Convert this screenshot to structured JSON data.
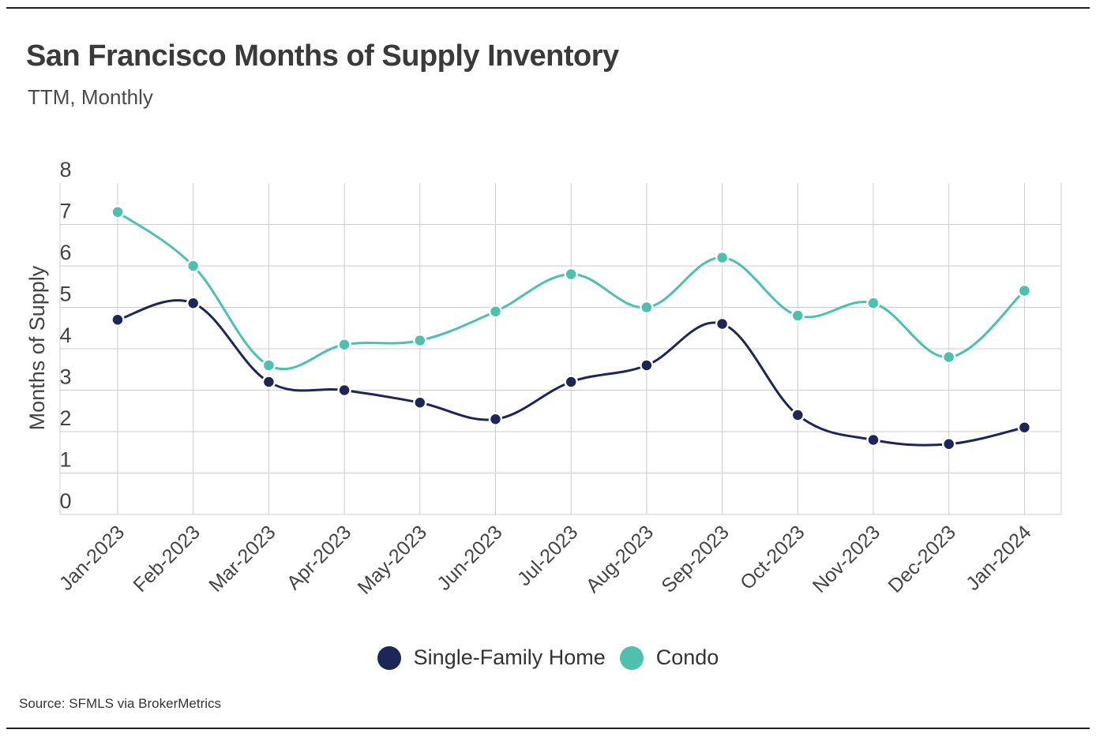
{
  "title": "San Francisco Months of Supply Inventory",
  "subtitle": "TTM, Monthly",
  "source": "Source:  SFMLS via BrokerMetrics",
  "colors": {
    "single_family": "#1c2657",
    "condo": "#4dc1ad",
    "grid": "#cccccc"
  },
  "chart_data": {
    "type": "line",
    "title": "San Francisco Months of Supply Inventory",
    "subtitle": "TTM, Monthly",
    "xlabel": "",
    "ylabel": "Months of Supply",
    "ylim": [
      0,
      8
    ],
    "yticks": [
      "0",
      "1",
      "2",
      "3",
      "4",
      "5",
      "6",
      "7",
      "8"
    ],
    "grid": true,
    "legend": "bottom-center",
    "categories": [
      "Jan-2023",
      "Feb-2023",
      "Mar-2023",
      "Apr-2023",
      "May-2023",
      "Jun-2023",
      "Jul-2023",
      "Aug-2023",
      "Sep-2023",
      "Oct-2023",
      "Nov-2023",
      "Dec-2023",
      "Jan-2024"
    ],
    "series": [
      {
        "name": "Single-Family Home",
        "values": [
          4.7,
          5.1,
          3.2,
          3.0,
          2.7,
          2.3,
          3.2,
          3.6,
          4.6,
          2.4,
          1.8,
          1.7,
          2.1
        ]
      },
      {
        "name": "Condo",
        "values": [
          7.3,
          6.0,
          3.6,
          4.1,
          4.2,
          4.9,
          5.8,
          5.0,
          6.2,
          4.8,
          5.1,
          3.8,
          5.4
        ]
      }
    ]
  }
}
